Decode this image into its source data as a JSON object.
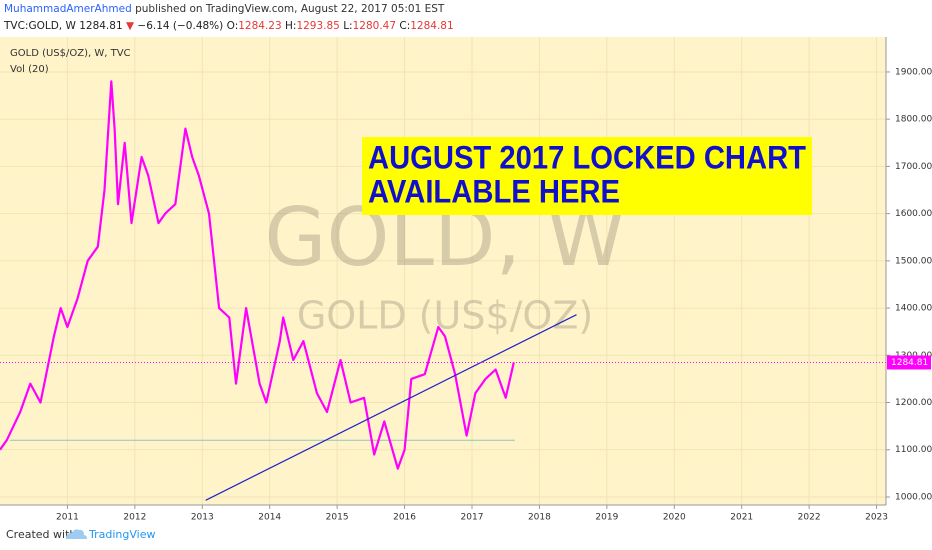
{
  "header": {
    "author": "MuhammadAmerAhmed",
    "published": "published on TradingView.com, August 22, 2017 05:01 EST",
    "symbol": "TVC:GOLD, W",
    "last": 1284.81,
    "arrow": "▼",
    "change": "−6.14 (−0.48%)",
    "ohlc": [
      {
        "label": "O:",
        "value": 1284.23
      },
      {
        "label": "H:",
        "value": 1293.85
      },
      {
        "label": "L:",
        "value": 1280.47
      },
      {
        "label": "C:",
        "value": 1284.81
      }
    ]
  },
  "chart_data": {
    "type": "line",
    "legend_title": "GOLD (US$/OZ), W, TVC",
    "indicator": "Vol (20)",
    "watermark": "GOLD, W",
    "watermark_sub": "GOLD (US$/OZ)",
    "annotation": [
      "AUGUST 2017 LOCKED CHART",
      "AVAILABLE HERE"
    ],
    "x": [
      2010.0,
      2010.1,
      2010.3,
      2010.45,
      2010.6,
      2010.8,
      2010.9,
      2011.0,
      2011.15,
      2011.3,
      2011.45,
      2011.55,
      2011.65,
      2011.7,
      2011.75,
      2011.85,
      2011.95,
      2012.1,
      2012.2,
      2012.35,
      2012.45,
      2012.6,
      2012.75,
      2012.85,
      2012.95,
      2013.1,
      2013.25,
      2013.4,
      2013.5,
      2013.65,
      2013.85,
      2013.95,
      2014.15,
      2014.2,
      2014.35,
      2014.5,
      2014.7,
      2014.85,
      2015.05,
      2015.2,
      2015.4,
      2015.55,
      2015.7,
      2015.9,
      2016.0,
      2016.1,
      2016.3,
      2016.5,
      2016.6,
      2016.75,
      2016.92,
      2017.05,
      2017.2,
      2017.35,
      2017.5,
      2017.62
    ],
    "series": [
      {
        "name": "GOLD",
        "color": "#ff00ff",
        "values": [
          1100,
          1120,
          1180,
          1240,
          1200,
          1340,
          1400,
          1360,
          1420,
          1500,
          1530,
          1650,
          1880,
          1780,
          1620,
          1750,
          1580,
          1720,
          1680,
          1580,
          1600,
          1620,
          1780,
          1720,
          1680,
          1600,
          1400,
          1380,
          1240,
          1400,
          1240,
          1200,
          1330,
          1380,
          1290,
          1330,
          1220,
          1180,
          1290,
          1200,
          1210,
          1090,
          1160,
          1060,
          1100,
          1250,
          1260,
          1360,
          1340,
          1260,
          1130,
          1220,
          1250,
          1270,
          1210,
          1285
        ]
      }
    ],
    "last_price": 1284.81,
    "support": 1120,
    "trendline": {
      "x": [
        2013.05,
        2018.55
      ],
      "y": [
        993,
        1386
      ]
    },
    "xlim": [
      2010,
      2023.14
    ],
    "xticks": [
      2011,
      2012,
      2013,
      2014,
      2015,
      2016,
      2017,
      2018,
      2019,
      2020,
      2021,
      2022,
      2023
    ],
    "ylim": [
      983,
      1974
    ],
    "yticks": [
      {
        "value": 1000,
        "label": "1000.00"
      },
      {
        "value": 1100,
        "label": "1100.00"
      },
      {
        "value": 1200,
        "label": "1200.00"
      },
      {
        "value": 1300,
        "label": "1300.00"
      },
      {
        "value": 1400,
        "label": "1400.00"
      },
      {
        "value": 1500,
        "label": "1500.00"
      },
      {
        "value": 1600,
        "label": "1600.00"
      },
      {
        "value": 1700,
        "label": "1700.00"
      },
      {
        "value": 1800,
        "label": "1800.00"
      },
      {
        "value": 1900,
        "label": "1900.00"
      }
    ],
    "grid": true
  },
  "footer": {
    "created": "Created with",
    "brand": "TradingView"
  }
}
